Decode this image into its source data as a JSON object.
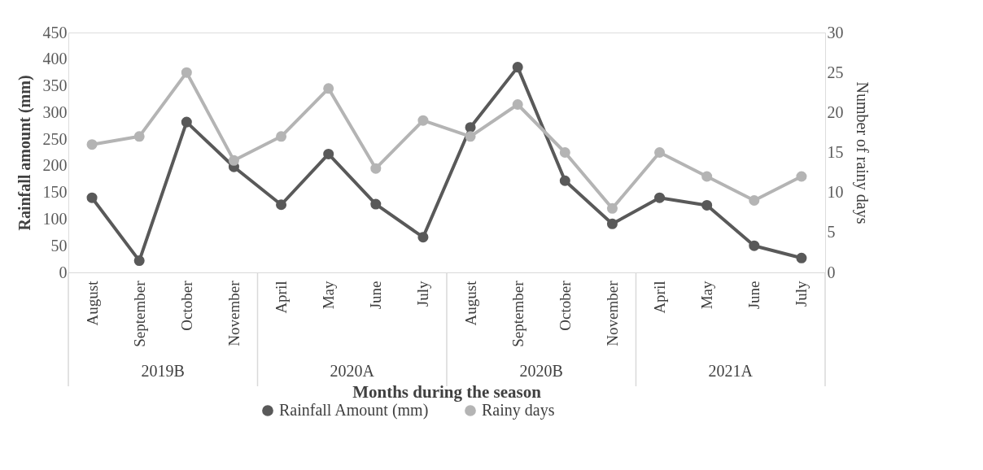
{
  "chart_data": {
    "type": "line",
    "xlabel": "Months during the season",
    "ylabel": "Rainfall amount (mm)",
    "y2label": "Number of rainy days",
    "categories": [
      "August",
      "September",
      "October",
      "November",
      "April",
      "May",
      "June",
      "July",
      "August",
      "September",
      "October",
      "November",
      "April",
      "May",
      "June",
      "July"
    ],
    "annotations": [
      "2019B",
      "2020A",
      "2020B",
      "2021A"
    ],
    "series": [
      {
        "name": "Rainfall Amount (mm)",
        "color": "#595959",
        "axis": "y",
        "values": [
          140,
          22,
          282,
          198,
          127,
          222,
          128,
          66,
          272,
          385,
          172,
          91,
          140,
          126,
          50,
          27
        ]
      },
      {
        "name": "Rainy days",
        "color": "#b4b4b4",
        "axis": "y2",
        "values": [
          16,
          17,
          25,
          14,
          17,
          23,
          13,
          19,
          17,
          21,
          15,
          8,
          15,
          12,
          9,
          12
        ]
      }
    ],
    "ylim": [
      0,
      450
    ],
    "yticks": [
      0,
      50,
      100,
      150,
      200,
      250,
      300,
      350,
      400,
      450
    ],
    "y2lim": [
      0,
      30
    ],
    "y2ticks": [
      0,
      5,
      10,
      15,
      20,
      25,
      30
    ],
    "grid": false,
    "legend": "bottom",
    "marker": "circle",
    "line_style": "solid"
  }
}
